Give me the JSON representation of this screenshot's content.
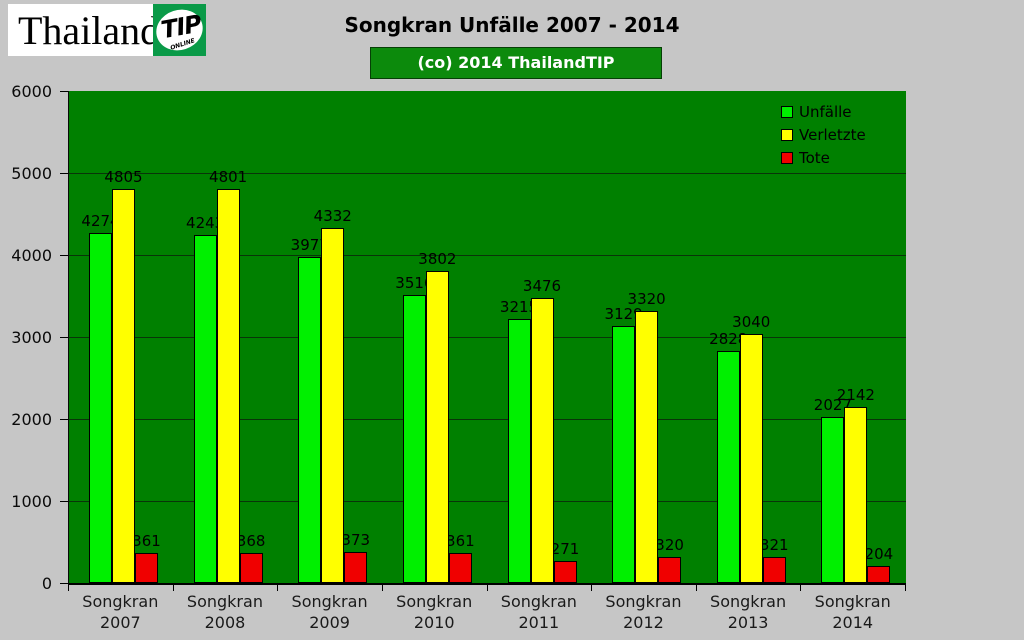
{
  "window": {
    "background": "#c6c6c6"
  },
  "logo": {
    "brand": "Thailand",
    "badge": "TIP",
    "badge_sub": "ONLINE",
    "badge_bg": "#0a9a48"
  },
  "header": {
    "title": "Songkran Unfälle 2007 - 2014",
    "banner_label": "(co) 2014 ThailandTIP",
    "banner_bg": "#0c8a0c"
  },
  "chart_data": {
    "type": "bar",
    "title": "Songkran Unfälle 2007 - 2014",
    "subtitle": "(co) 2014 ThailandTIP",
    "categories": [
      "Songkran 2007",
      "Songkran 2008",
      "Songkran 2009",
      "Songkran 2010",
      "Songkran 2011",
      "Songkran 2012",
      "Songkran 2013",
      "Songkran 2014"
    ],
    "series": [
      {
        "name": "Unfälle",
        "color": "#00f000",
        "values": [
          4274,
          4243,
          3977,
          3516,
          3215,
          3129,
          2828,
          2027
        ]
      },
      {
        "name": "Verletzte",
        "color": "#ffff00",
        "values": [
          4805,
          4801,
          4332,
          3802,
          3476,
          3320,
          3040,
          2142
        ]
      },
      {
        "name": "Tote",
        "color": "#f00000",
        "values": [
          361,
          368,
          373,
          361,
          271,
          320,
          321,
          204
        ]
      }
    ],
    "ylim": [
      0,
      6000
    ],
    "yticks": [
      0,
      1000,
      2000,
      3000,
      4000,
      5000,
      6000
    ],
    "grid": true,
    "plot_bg": "#008000",
    "gridline_color": "#093409",
    "legend_position": "top-right-inside",
    "value_labels": true
  }
}
